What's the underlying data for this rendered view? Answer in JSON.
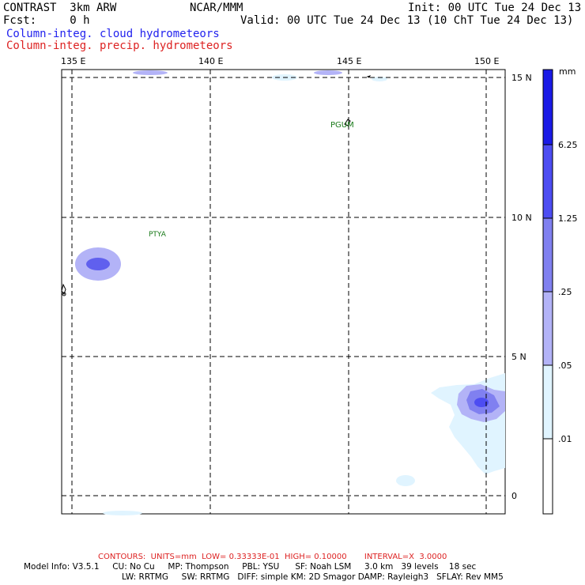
{
  "header": {
    "model": "CONTRAST  3km ARW",
    "org": "NCAR/MMM",
    "init": "Init: 00 UTC Tue 24 Dec 13",
    "fcst": "Fcst:     0 h",
    "valid": "Valid: 00 UTC Tue 24 Dec 13 (10 ChT Tue 24 Dec 13)",
    "field1": "Column-integ. cloud hydrometeors",
    "field2": "Column-integ. precip. hydrometeors"
  },
  "map": {
    "lon_labels": [
      "135 E",
      "140 E",
      "145 E",
      "150 E"
    ],
    "lat_labels": [
      "15 N",
      "10 N",
      "5 N",
      "0"
    ],
    "stations": [
      "PGUM",
      "PTYA"
    ]
  },
  "colorbar": {
    "units": "mm",
    "levels": [
      "6.25",
      "1.25",
      ".25",
      ".05",
      ".01"
    ],
    "colors": [
      "#1a1ae6",
      "#4d4df2",
      "#8080f0",
      "#b3b3f7",
      "#e0f4ff",
      "#ffffff"
    ]
  },
  "footer": {
    "contours": "CONTOURS:  UNITS=mm  LOW= 0.33333E-01  HIGH= 0.10000       INTERVAL=X  3.0000",
    "model_line1": "Model Info: V3.5.1     CU: No Cu     MP: Thompson     PBL: YSU      SF: Noah LSM     3.0 km   39 levels    18 sec",
    "model_line2": "LW: RRTMG     SW: RRTMG   DIFF: simple KM: 2D Smagor DAMP: Rayleigh3   SFLAY: Rev MM5"
  }
}
